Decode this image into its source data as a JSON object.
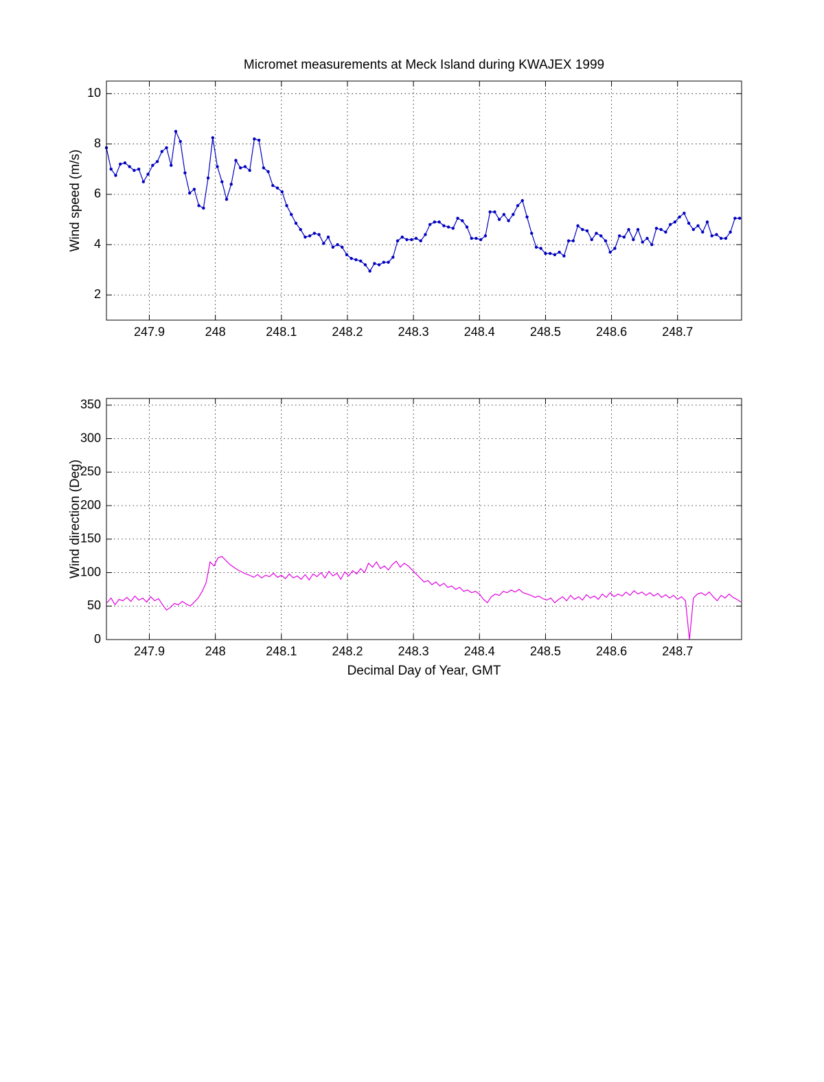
{
  "chart_data": [
    {
      "type": "line",
      "title": "Micromet measurements at Meck Island during KWAJEX 1999",
      "ylabel": "Wind speed (m/s)",
      "grid": true,
      "markers": true,
      "color": "#0000c0",
      "xlim": [
        247.835,
        248.797
      ],
      "xticks": [
        247.9,
        248,
        248.1,
        248.2,
        248.3,
        248.4,
        248.5,
        248.6,
        248.7
      ],
      "ylim": [
        1,
        10.5
      ],
      "yticks": [
        2,
        4,
        6,
        8,
        10
      ],
      "x": [
        247.835,
        247.842,
        247.849,
        247.856,
        247.863,
        247.87,
        247.877,
        247.884,
        247.891,
        247.898,
        247.905,
        247.912,
        247.919,
        247.926,
        247.933,
        247.94,
        247.947,
        247.954,
        247.961,
        247.968,
        247.975,
        247.982,
        247.989,
        247.996,
        248.003,
        248.01,
        248.017,
        248.024,
        248.031,
        248.038,
        248.045,
        248.052,
        248.059,
        248.066,
        248.073,
        248.08,
        248.087,
        248.094,
        248.101,
        248.108,
        248.115,
        248.122,
        248.129,
        248.136,
        248.143,
        248.15,
        248.157,
        248.164,
        248.171,
        248.178,
        248.185,
        248.192,
        248.199,
        248.206,
        248.213,
        248.22,
        248.227,
        248.234,
        248.241,
        248.248,
        248.255,
        248.262,
        248.269,
        248.276,
        248.283,
        248.29,
        248.297,
        248.304,
        248.311,
        248.318,
        248.325,
        248.332,
        248.339,
        248.346,
        248.353,
        248.36,
        248.367,
        248.374,
        248.381,
        248.388,
        248.395,
        248.402,
        248.409,
        248.416,
        248.423,
        248.43,
        248.437,
        248.444,
        248.451,
        248.458,
        248.465,
        248.472,
        248.479,
        248.486,
        248.493,
        248.5,
        248.507,
        248.514,
        248.521,
        248.528,
        248.535,
        248.542,
        248.549,
        248.556,
        248.563,
        248.57,
        248.577,
        248.584,
        248.591,
        248.598,
        248.605,
        248.612,
        248.619,
        248.626,
        248.633,
        248.64,
        248.647,
        248.654,
        248.661,
        248.668,
        248.675,
        248.682,
        248.689,
        248.696,
        248.703,
        248.71,
        248.717,
        248.724,
        248.731,
        248.738,
        248.745,
        248.752,
        248.759,
        248.766,
        248.773,
        248.78,
        248.787,
        248.794
      ],
      "values": [
        7.85,
        7.0,
        6.75,
        7.2,
        7.25,
        7.1,
        6.95,
        7.0,
        6.5,
        6.8,
        7.15,
        7.3,
        7.7,
        7.85,
        7.15,
        8.5,
        8.1,
        6.85,
        6.05,
        6.2,
        5.55,
        5.45,
        6.65,
        8.25,
        7.1,
        6.5,
        5.8,
        6.4,
        7.35,
        7.05,
        7.1,
        6.95,
        8.2,
        8.15,
        7.05,
        6.9,
        6.35,
        6.25,
        6.1,
        5.55,
        5.2,
        4.85,
        4.6,
        4.3,
        4.35,
        4.45,
        4.4,
        4.05,
        4.3,
        3.9,
        4.0,
        3.9,
        3.6,
        3.45,
        3.4,
        3.35,
        3.2,
        2.95,
        3.25,
        3.2,
        3.3,
        3.3,
        3.5,
        4.15,
        4.3,
        4.2,
        4.2,
        4.25,
        4.15,
        4.4,
        4.8,
        4.9,
        4.9,
        4.75,
        4.7,
        4.65,
        5.05,
        4.95,
        4.7,
        4.25,
        4.25,
        4.2,
        4.35,
        5.3,
        5.3,
        5.0,
        5.2,
        4.95,
        5.2,
        5.55,
        5.75,
        5.1,
        4.45,
        3.9,
        3.85,
        3.65,
        3.65,
        3.6,
        3.7,
        3.55,
        4.15,
        4.15,
        4.75,
        4.6,
        4.55,
        4.2,
        4.45,
        4.35,
        4.15,
        3.7,
        3.85,
        4.35,
        4.3,
        4.6,
        4.2,
        4.6,
        4.1,
        4.25,
        4.0,
        4.65,
        4.6,
        4.5,
        4.8,
        4.9,
        5.1,
        5.25,
        4.85,
        4.6,
        4.75,
        4.5,
        4.9,
        4.35,
        4.4,
        4.25,
        4.25,
        4.5,
        5.05,
        5.05
      ]
    },
    {
      "type": "line",
      "xlabel": "Decimal Day of Year, GMT",
      "ylabel": "Wind direction (Deg)",
      "grid": true,
      "markers": false,
      "color": "#e000e0",
      "xlim": [
        247.835,
        248.797
      ],
      "xticks": [
        247.9,
        248,
        248.1,
        248.2,
        248.3,
        248.4,
        248.5,
        248.6,
        248.7
      ],
      "ylim": [
        0,
        360
      ],
      "yticks": [
        0,
        50,
        100,
        150,
        200,
        250,
        300,
        350
      ],
      "x": [
        247.836,
        247.842,
        247.848,
        247.854,
        247.86,
        247.866,
        247.872,
        247.878,
        247.884,
        247.89,
        247.896,
        247.902,
        247.908,
        247.914,
        247.92,
        247.926,
        247.932,
        247.938,
        247.944,
        247.95,
        247.956,
        247.962,
        247.968,
        247.974,
        247.98,
        247.986,
        247.992,
        247.998,
        248.004,
        248.01,
        248.016,
        248.022,
        248.028,
        248.034,
        248.04,
        248.046,
        248.052,
        248.058,
        248.064,
        248.07,
        248.076,
        248.082,
        248.088,
        248.094,
        248.1,
        248.106,
        248.112,
        248.118,
        248.124,
        248.13,
        248.136,
        248.142,
        248.148,
        248.154,
        248.16,
        248.166,
        248.172,
        248.178,
        248.184,
        248.19,
        248.196,
        248.202,
        248.208,
        248.214,
        248.22,
        248.226,
        248.232,
        248.238,
        248.244,
        248.25,
        248.256,
        248.262,
        248.268,
        248.274,
        248.28,
        248.286,
        248.292,
        248.298,
        248.304,
        248.31,
        248.316,
        248.322,
        248.328,
        248.334,
        248.34,
        248.346,
        248.352,
        248.358,
        248.364,
        248.37,
        248.376,
        248.382,
        248.388,
        248.394,
        248.4,
        248.406,
        248.412,
        248.418,
        248.424,
        248.43,
        248.436,
        248.442,
        248.448,
        248.454,
        248.46,
        248.466,
        248.472,
        248.478,
        248.484,
        248.49,
        248.496,
        248.502,
        248.508,
        248.514,
        248.52,
        248.526,
        248.532,
        248.538,
        248.544,
        248.55,
        248.556,
        248.562,
        248.568,
        248.574,
        248.58,
        248.586,
        248.592,
        248.598,
        248.604,
        248.61,
        248.616,
        248.622,
        248.628,
        248.634,
        248.64,
        248.646,
        248.652,
        248.658,
        248.664,
        248.67,
        248.676,
        248.682,
        248.688,
        248.694,
        248.7,
        248.706,
        248.712,
        248.718,
        248.724,
        248.73,
        248.736,
        248.742,
        248.748,
        248.754,
        248.76,
        248.766,
        248.772,
        248.778,
        248.784,
        248.79,
        248.796
      ],
      "values": [
        55,
        62,
        52,
        60,
        58,
        63,
        57,
        65,
        59,
        62,
        56,
        64,
        58,
        61,
        52,
        44,
        48,
        54,
        52,
        57,
        53,
        50,
        56,
        62,
        72,
        85,
        116,
        110,
        122,
        124,
        118,
        112,
        108,
        104,
        101,
        98,
        96,
        93,
        97,
        92,
        96,
        94,
        99,
        93,
        96,
        91,
        98,
        92,
        95,
        90,
        97,
        89,
        98,
        94,
        100,
        92,
        102,
        95,
        99,
        90,
        101,
        95,
        103,
        98,
        106,
        100,
        114,
        108,
        116,
        106,
        110,
        104,
        112,
        117,
        108,
        114,
        110,
        104,
        98,
        92,
        86,
        88,
        82,
        86,
        80,
        84,
        78,
        80,
        75,
        78,
        72,
        74,
        70,
        72,
        68,
        60,
        55,
        64,
        68,
        66,
        72,
        70,
        74,
        71,
        75,
        70,
        68,
        66,
        63,
        65,
        61,
        59,
        62,
        55,
        60,
        64,
        58,
        66,
        60,
        64,
        59,
        67,
        62,
        65,
        60,
        68,
        63,
        70,
        64,
        68,
        65,
        71,
        66,
        73,
        68,
        71,
        66,
        70,
        65,
        69,
        63,
        67,
        62,
        66,
        60,
        64,
        58,
        0,
        62,
        68,
        70,
        66,
        71,
        64,
        58,
        66,
        62,
        68,
        63,
        60,
        56
      ]
    }
  ]
}
